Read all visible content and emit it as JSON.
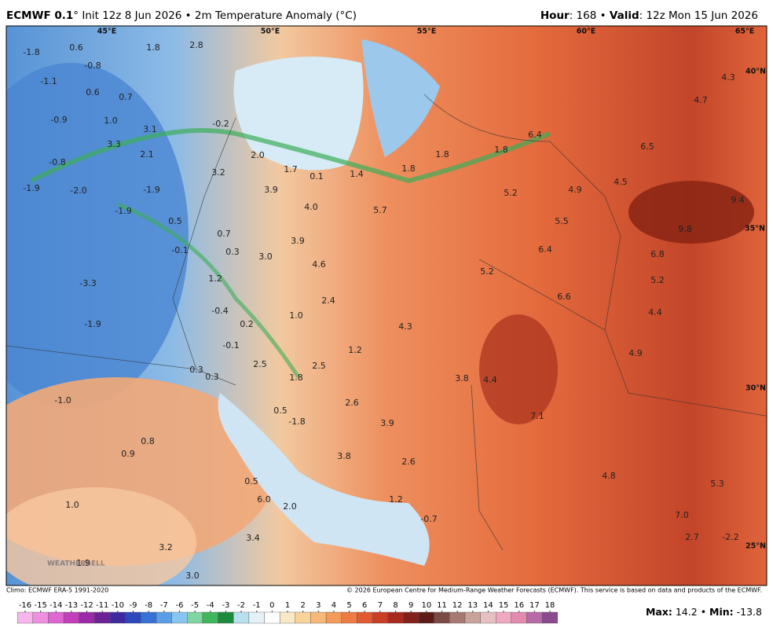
{
  "header": {
    "model": "ECMWF 0.1",
    "rest": "° Init 12z 8 Jun 2026 • 2m Temperature Anomaly (°C)",
    "hour_label": "Hour",
    "hour_rest": ": 168 • ",
    "valid_label": "Valid",
    "valid_rest": ": 12z Mon 15 Jun 2026"
  },
  "map": {
    "grid_labels": [
      "45°E",
      "50°E",
      "55°E",
      "60°E",
      "65°E",
      "40°N",
      "35°N",
      "30°N",
      "25°N"
    ],
    "labels": [
      "-1.8",
      "0.6",
      "1.8",
      "2.8",
      "-0.8",
      "-1.1",
      "0.6",
      "0.7",
      "-0.9",
      "1.0",
      "3.1",
      "-0.2",
      "3.3",
      "2.1",
      "2.0",
      "-0.8",
      "1.7",
      "0.1",
      "1.4",
      "1.8",
      "1.8",
      "1.8",
      "6.4",
      "6.5",
      "4.7",
      "4.3",
      "3.2",
      "-1.9",
      "-2.0",
      "-1.9",
      "3.9",
      "4.0",
      "5.7",
      "5.2",
      "4.9",
      "4.5",
      "9.4",
      "9.8",
      "5.5",
      "-1.9",
      "0.5",
      "0.7",
      "3.9",
      "6.4",
      "6.8",
      "-0.1",
      "0.3",
      "3.0",
      "4.6",
      "5.2",
      "5.2",
      "-3.3",
      "1.2",
      "6.6",
      "2.4",
      "-0.4",
      "1.0",
      "4.4",
      "-1.9",
      "0.2",
      "4.3",
      "-0.1",
      "1.2",
      "4.9",
      "2.5",
      "2.5",
      "0.3",
      "0.3",
      "1.8",
      "3.8",
      "4.4",
      "-1.0",
      "2.6",
      "0.5",
      "-1.8",
      "3.9",
      "7.1",
      "0.8",
      "0.9",
      "3.8",
      "2.6",
      "4.8",
      "5.3",
      "0.5",
      "1.0",
      "6.0",
      "2.0",
      "1.2",
      "-0.7",
      "7.0",
      "3.4",
      "3.2",
      "2.7",
      "-2.2",
      "1.9",
      "3.0"
    ],
    "logo": "WEATHERBELL"
  },
  "footer": {
    "climo": "Climo: ECMWF ERA-5 1991-2020",
    "copyright": "© 2026 European Centre for Medium-Range Weather Forecasts (ECMWF). This service is based on data and products of the ECMWF."
  },
  "colorbar": {
    "ticks": [
      -16,
      -15,
      -14,
      -13,
      -12,
      -11,
      -10,
      -9,
      -8,
      -7,
      -6,
      -5,
      -4,
      -3,
      -2,
      -1,
      0,
      1,
      2,
      3,
      4,
      5,
      6,
      7,
      8,
      9,
      10,
      11,
      12,
      13,
      14,
      15,
      16,
      17,
      18
    ],
    "colors": [
      "#f7b6ec",
      "#ee8fe0",
      "#de66d0",
      "#c23fbb",
      "#9a2aa6",
      "#6a2296",
      "#3d2aa0",
      "#2b48bc",
      "#3672d6",
      "#5a9fe6",
      "#86c6f0",
      "#7fd6a0",
      "#3fb85c",
      "#1e8a3e",
      "#b8e0ef",
      "#e4f2f8",
      "#ffffff",
      "#fbe9c6",
      "#f9d39a",
      "#f7b878",
      "#f49a5a",
      "#ee7a44",
      "#e25a32",
      "#c93f26",
      "#a82a1e",
      "#82201a",
      "#5e1a16",
      "#7a4a44",
      "#a67a72",
      "#c9a29a",
      "#e6c0c2",
      "#f0a8c0",
      "#e28ab0",
      "#b86aa8",
      "#8a4a8e"
    ]
  },
  "stats": {
    "max_label": "Max:",
    "max_value": 14.2,
    "separator": "•",
    "min_label": "Min:",
    "min_value": -13.8
  }
}
